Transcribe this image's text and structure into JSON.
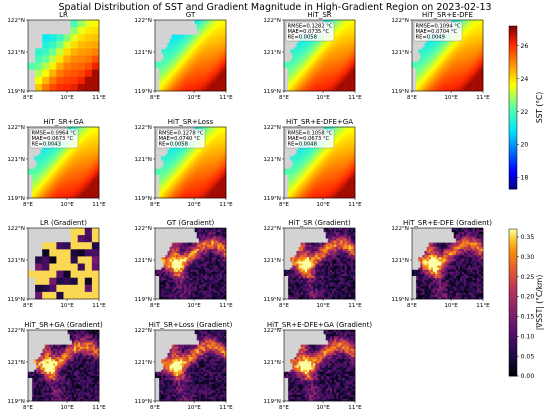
{
  "figure": {
    "title": "Spatial Distribution of SST and Gradient Magnitude in High-Gradient Region on 2023-02-13"
  },
  "chart_data": [
    {
      "type": "heatmap",
      "group": "sst",
      "panels": [
        {
          "title": "LR",
          "style": "lr",
          "metrics": null
        },
        {
          "title": "GT",
          "style": "smooth",
          "metrics": null
        },
        {
          "title": "HiT_SR",
          "style": "smooth",
          "metrics": [
            "RMSE=0.1282 °C",
            "MAE=0.0735 °C",
            "RE=0.0058"
          ]
        },
        {
          "title": "HiT_SR+E-DFE",
          "style": "smooth",
          "metrics": [
            "RMSE=0.1094 °C",
            "MAE=0.0704 °C",
            "RE=0.0049"
          ]
        },
        {
          "title": "HiT_SR+GA",
          "style": "smooth",
          "metrics": [
            "RMSE=0.0964 °C",
            "MAE=0.0673 °C",
            "RE=0.0043"
          ]
        },
        {
          "title": "HiT_SR+Loss",
          "style": "smooth",
          "metrics": [
            "RMSE=0.1278 °C",
            "MAE=0.0740 °C",
            "RE=0.0058"
          ]
        },
        {
          "title": "HiT_SR+E-DFE+GA",
          "style": "smooth",
          "metrics": [
            "RMSE=0.1058 °C",
            "MAE=0.0673 °C",
            "RE=0.0048"
          ]
        }
      ],
      "xticks": [
        "8°E",
        "10°E",
        "11°E"
      ],
      "yticks": [
        "122°N",
        "121°N",
        "119°N"
      ],
      "colorbar": {
        "label": "SST (°C)",
        "min": 17.3,
        "max": 27.2,
        "ticks": [
          18,
          20,
          22,
          24,
          26
        ],
        "colormap": "jet"
      }
    },
    {
      "type": "heatmap",
      "group": "gradient",
      "panels": [
        {
          "title": "LR (Gradient)",
          "style": "lrgrad",
          "metrics": null
        },
        {
          "title": "GT (Gradient)",
          "style": "grad",
          "metrics": null
        },
        {
          "title": "HiT_SR (Gradient)",
          "style": "grad",
          "metrics": null
        },
        {
          "title": "HiT_SR+E-DFE (Gradient)",
          "style": "grad",
          "metrics": null
        },
        {
          "title": "HiT_SR+GA (Gradient)",
          "style": "grad",
          "metrics": null
        },
        {
          "title": "HiT_SR+Loss (Gradient)",
          "style": "grad",
          "metrics": null
        },
        {
          "title": "HiT_SR+E-DFE+GA (Gradient)",
          "style": "grad",
          "metrics": null
        }
      ],
      "xticks": [
        "8°E",
        "10°E",
        "11°E"
      ],
      "yticks": [
        "122°N",
        "121°N",
        "119°N"
      ],
      "colorbar": {
        "label": "|∇SST| (°C/km)",
        "min": 0.0,
        "max": 0.37,
        "ticks": [
          0.0,
          0.05,
          0.1,
          0.15,
          0.2,
          0.25,
          0.3,
          0.35
        ],
        "colormap": "inferno"
      }
    }
  ]
}
